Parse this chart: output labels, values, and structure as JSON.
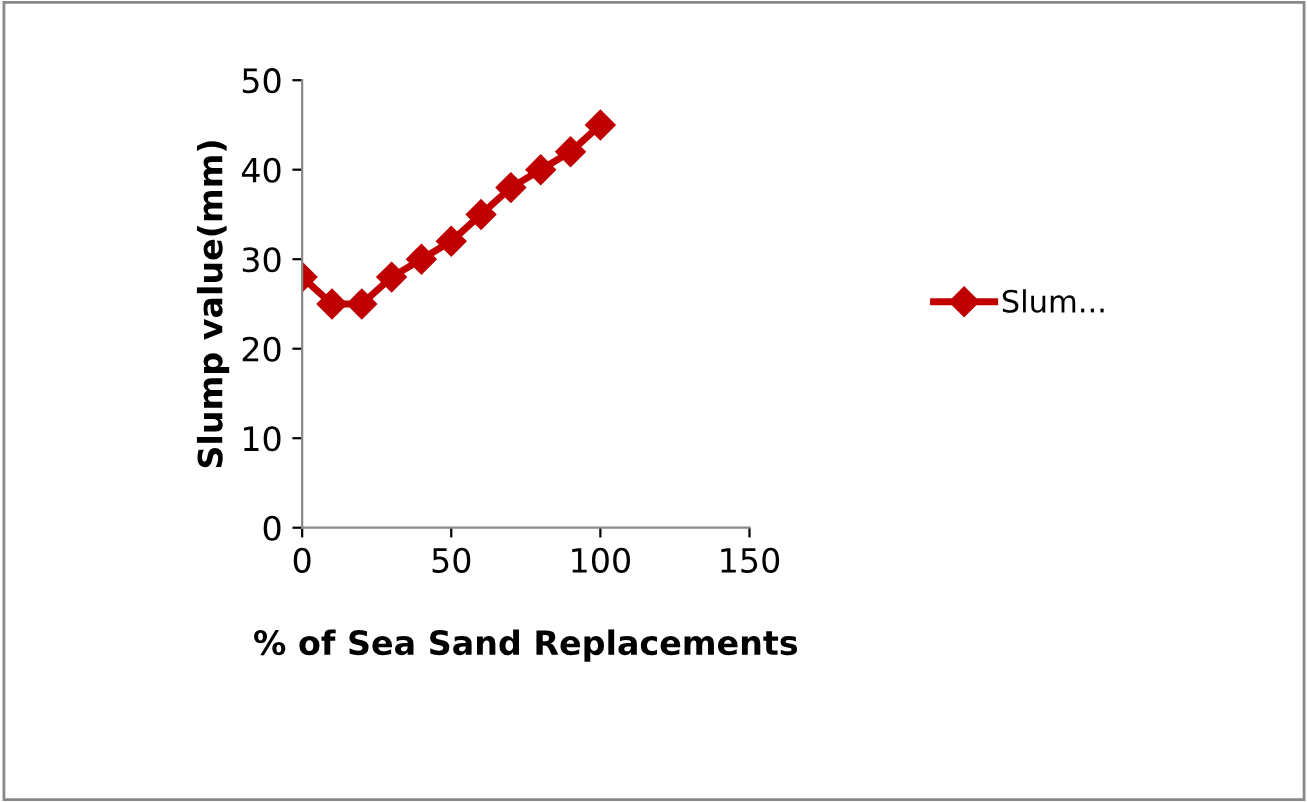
{
  "chart_data": {
    "type": "line",
    "ylabel": "Slump value(mm)",
    "xlabel": "% of Sea Sand Replacements",
    "x": [
      0,
      10,
      20,
      30,
      40,
      50,
      60,
      70,
      80,
      90,
      100
    ],
    "series": [
      {
        "name": "Slum...",
        "color": "#c00000",
        "values": [
          28,
          25,
          25,
          28,
          30,
          32,
          35,
          38,
          40,
          42,
          45
        ]
      }
    ],
    "xlim": [
      0,
      150
    ],
    "xticks": [
      0,
      50,
      100,
      150
    ],
    "ylim": [
      0,
      50
    ],
    "yticks": [
      0,
      10,
      20,
      30,
      40,
      50
    ],
    "grid": false,
    "legend": "right",
    "marker": "diamond",
    "line_style": "solid"
  }
}
